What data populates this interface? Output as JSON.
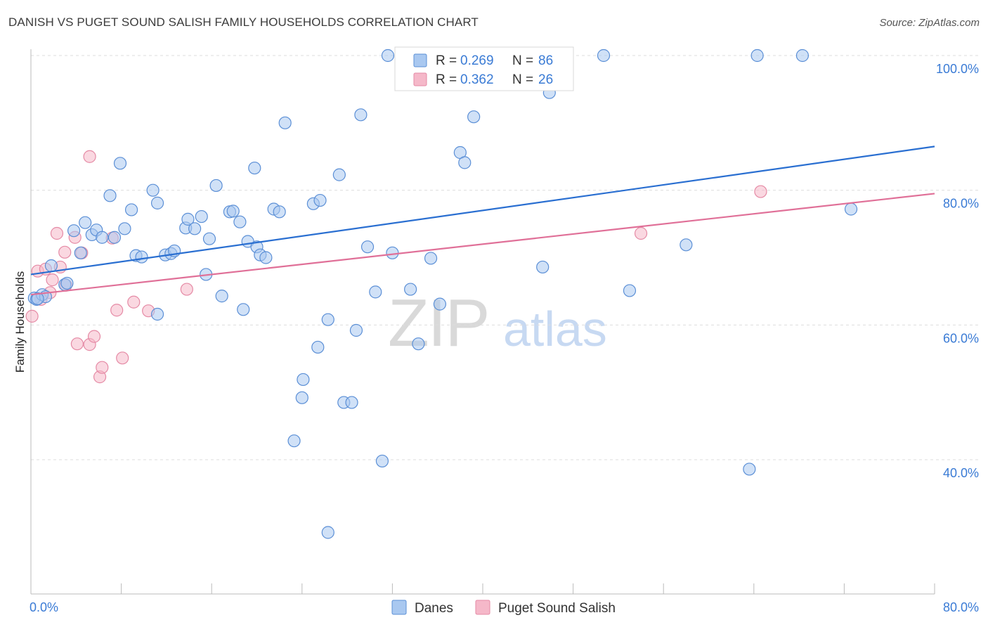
{
  "header": {
    "title": "DANISH VS PUGET SOUND SALISH FAMILY HOUSEHOLDS CORRELATION CHART",
    "source": "Source: ZipAtlas.com"
  },
  "watermark": {
    "zip": "ZIP",
    "atlas": "atlas"
  },
  "colors": {
    "danes_fill": "#a9c8f0",
    "danes_stroke": "#5b8fd6",
    "danes_line": "#2a6fd1",
    "puget_fill": "#f5b8c9",
    "puget_stroke": "#e58aa5",
    "puget_line": "#e07098",
    "tick_text": "#3a7bd5",
    "grid": "#dddddd"
  },
  "legend": {
    "rows": [
      {
        "r_label": "R = ",
        "r_value": "0.269",
        "n_label": "N = ",
        "n_value": "86"
      },
      {
        "r_label": "R = ",
        "r_value": "0.362",
        "n_label": "N = ",
        "n_value": "26"
      }
    ]
  },
  "chart_data": {
    "type": "scatter",
    "title": "DANISH VS PUGET SOUND SALISH FAMILY HOUSEHOLDS CORRELATION CHART",
    "xlabel": "",
    "ylabel": "Family Households",
    "xlim": [
      0,
      80
    ],
    "ylim": [
      23,
      103
    ],
    "x_tick_labels": [
      {
        "value": 0,
        "label": "0.0%"
      },
      {
        "value": 80,
        "label": "80.0%"
      }
    ],
    "y_tick_labels": [
      {
        "value": 40,
        "label": "40.0%"
      },
      {
        "value": 60,
        "label": "60.0%"
      },
      {
        "value": 80,
        "label": "80.0%"
      },
      {
        "value": 100,
        "label": "100.0%"
      }
    ],
    "grid": true,
    "legend_position": "top-center",
    "series": [
      {
        "name": "Danes",
        "trend": {
          "x": [
            0,
            80
          ],
          "y": [
            67.5,
            86.5
          ]
        },
        "points": [
          [
            0.3,
            64.0
          ],
          [
            0.5,
            63.8
          ],
          [
            1.0,
            64.5
          ],
          [
            1.3,
            64.2
          ],
          [
            1.8,
            68.8
          ],
          [
            3.0,
            66.0
          ],
          [
            3.2,
            66.2
          ],
          [
            3.8,
            74.0
          ],
          [
            4.4,
            70.7
          ],
          [
            4.8,
            75.2
          ],
          [
            5.4,
            73.4
          ],
          [
            5.8,
            74.1
          ],
          [
            6.3,
            73.0
          ],
          [
            7.0,
            79.2
          ],
          [
            7.4,
            73.0
          ],
          [
            7.9,
            84.0
          ],
          [
            8.3,
            74.3
          ],
          [
            8.9,
            77.1
          ],
          [
            9.3,
            70.3
          ],
          [
            9.8,
            70.1
          ],
          [
            10.8,
            80.0
          ],
          [
            11.2,
            78.1
          ],
          [
            11.2,
            61.6
          ],
          [
            11.9,
            70.4
          ],
          [
            12.4,
            70.6
          ],
          [
            12.7,
            71.0
          ],
          [
            13.7,
            74.4
          ],
          [
            13.9,
            75.7
          ],
          [
            14.5,
            74.3
          ],
          [
            15.1,
            76.1
          ],
          [
            15.5,
            67.5
          ],
          [
            15.8,
            72.8
          ],
          [
            16.4,
            80.7
          ],
          [
            16.9,
            64.3
          ],
          [
            17.6,
            76.8
          ],
          [
            17.9,
            76.9
          ],
          [
            18.5,
            75.3
          ],
          [
            18.8,
            62.3
          ],
          [
            19.2,
            72.4
          ],
          [
            19.8,
            83.3
          ],
          [
            20.0,
            71.6
          ],
          [
            20.3,
            70.4
          ],
          [
            20.8,
            70.0
          ],
          [
            21.5,
            77.2
          ],
          [
            22.0,
            76.8
          ],
          [
            22.5,
            90.0
          ],
          [
            23.3,
            42.8
          ],
          [
            24.0,
            49.2
          ],
          [
            24.1,
            51.9
          ],
          [
            25.0,
            78.0
          ],
          [
            25.4,
            56.7
          ],
          [
            25.6,
            78.5
          ],
          [
            26.3,
            60.8
          ],
          [
            27.3,
            82.3
          ],
          [
            27.7,
            48.5
          ],
          [
            28.4,
            48.5
          ],
          [
            28.8,
            59.2
          ],
          [
            29.2,
            91.2
          ],
          [
            29.8,
            71.6
          ],
          [
            30.5,
            64.9
          ],
          [
            31.1,
            39.8
          ],
          [
            31.6,
            100.0
          ],
          [
            32.0,
            70.7
          ],
          [
            33.6,
            65.3
          ],
          [
            34.3,
            57.2
          ],
          [
            35.4,
            69.9
          ],
          [
            36.2,
            63.1
          ],
          [
            37.0,
            96.2
          ],
          [
            37.6,
            100.0
          ],
          [
            38.0,
            85.6
          ],
          [
            38.4,
            84.1
          ],
          [
            39.2,
            90.9
          ],
          [
            42.2,
            100.0
          ],
          [
            43.6,
            100.0
          ],
          [
            45.3,
            68.6
          ],
          [
            45.9,
            94.5
          ],
          [
            47.0,
            100.0
          ],
          [
            50.7,
            100.0
          ],
          [
            53.0,
            65.1
          ],
          [
            58.0,
            71.9
          ],
          [
            63.6,
            38.6
          ],
          [
            64.3,
            100.0
          ],
          [
            68.3,
            100.0
          ],
          [
            72.6,
            77.2
          ],
          [
            26.3,
            29.2
          ],
          [
            0.6,
            63.9
          ]
        ]
      },
      {
        "name": "Puget Sound Salish",
        "trend": {
          "x": [
            0,
            80
          ],
          "y": [
            64.5,
            79.5
          ]
        },
        "points": [
          [
            0.1,
            61.3
          ],
          [
            0.6,
            68.0
          ],
          [
            1.3,
            68.3
          ],
          [
            1.7,
            64.8
          ],
          [
            1.9,
            66.7
          ],
          [
            2.3,
            73.6
          ],
          [
            2.6,
            68.6
          ],
          [
            3.0,
            70.8
          ],
          [
            3.1,
            65.9
          ],
          [
            3.9,
            73.0
          ],
          [
            4.1,
            57.2
          ],
          [
            4.5,
            70.7
          ],
          [
            5.2,
            85.0
          ],
          [
            5.2,
            57.1
          ],
          [
            5.6,
            58.3
          ],
          [
            6.1,
            52.3
          ],
          [
            6.3,
            53.7
          ],
          [
            7.2,
            72.9
          ],
          [
            7.6,
            62.2
          ],
          [
            8.1,
            55.1
          ],
          [
            9.1,
            63.4
          ],
          [
            10.4,
            62.1
          ],
          [
            13.8,
            65.3
          ],
          [
            54.0,
            73.6
          ],
          [
            64.6,
            79.8
          ],
          [
            0.9,
            63.8
          ]
        ]
      }
    ]
  }
}
